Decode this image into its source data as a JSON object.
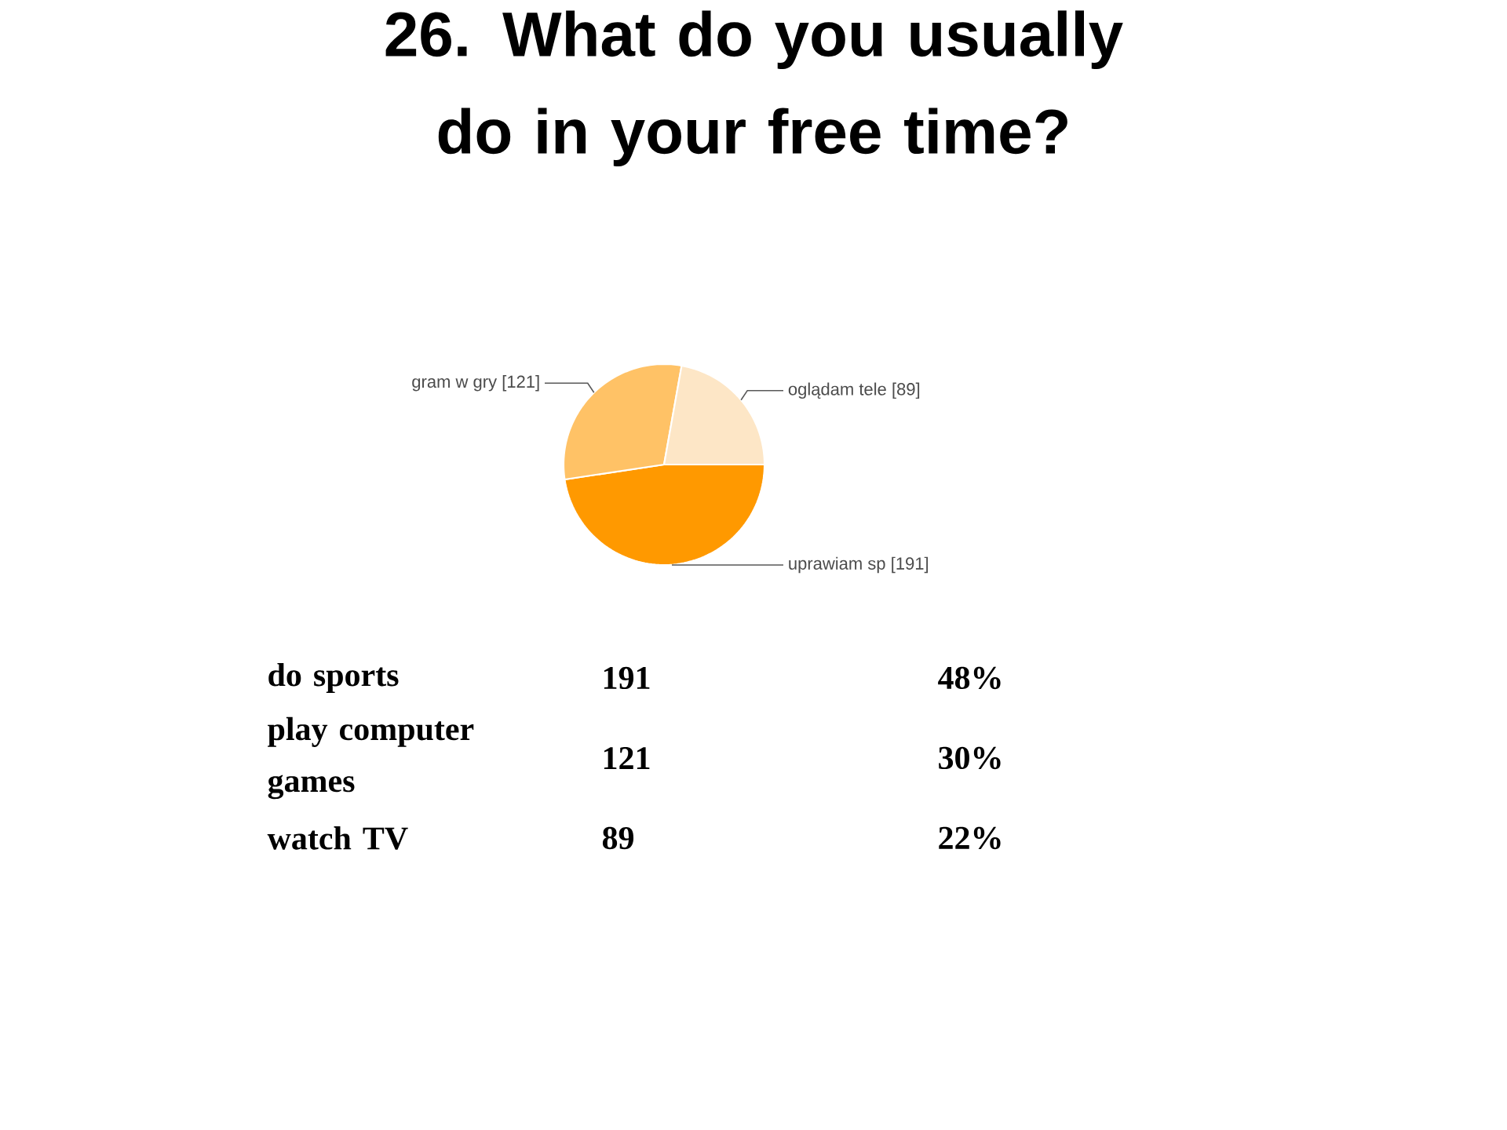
{
  "chart_data": {
    "type": "pie",
    "title": "26. What do you usually do in your free time?",
    "categories": [
      "uprawiam sp",
      "gram w gry",
      "oglądam tele"
    ],
    "values": [
      191,
      121,
      89
    ],
    "colors": [
      "#ff9900",
      "#ffc266",
      "#fde6c6"
    ],
    "value_labels": [
      "[191]",
      "[121]",
      "[89]"
    ],
    "annotations": [
      "do sports",
      "191",
      "48%",
      "play computer games",
      "121",
      "30%",
      "watch TV",
      "89",
      "22%"
    ]
  }
}
